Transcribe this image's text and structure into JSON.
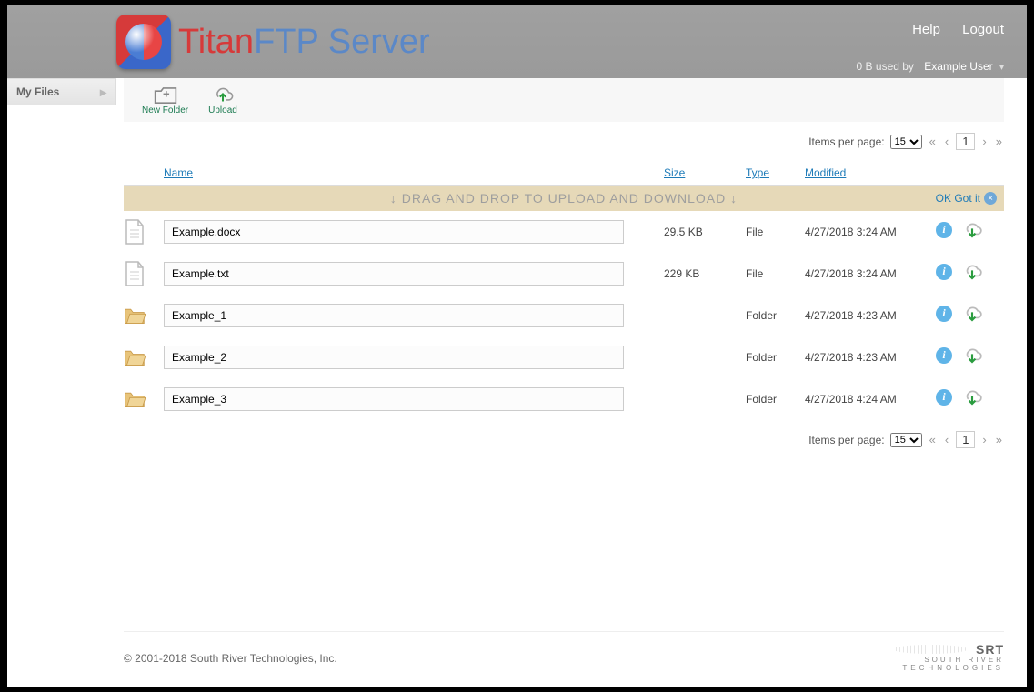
{
  "header": {
    "brand_a": "Titan",
    "brand_b": "FTP Server",
    "help": "Help",
    "logout": "Logout",
    "usage": "0 B used by",
    "user": "Example User"
  },
  "sidebar": {
    "my_files": "My Files"
  },
  "toolbar": {
    "new_folder": "New Folder",
    "upload": "Upload"
  },
  "pager": {
    "label": "Items per page:",
    "per_page": "15",
    "current": "1"
  },
  "columns": {
    "name": "Name",
    "size": "Size",
    "type": "Type",
    "modified": "Modified"
  },
  "banner": {
    "text": "↓ DRAG AND DROP TO UPLOAD AND DOWNLOAD ↓",
    "ok": "OK Got it"
  },
  "rows": [
    {
      "icon": "file",
      "name": "Example.docx",
      "size": "29.5 KB",
      "type": "File",
      "modified": "4/27/2018 3:24 AM"
    },
    {
      "icon": "file",
      "name": "Example.txt",
      "size": "229 KB",
      "type": "File",
      "modified": "4/27/2018 3:24 AM"
    },
    {
      "icon": "folder",
      "name": "Example_1",
      "size": "",
      "type": "Folder",
      "modified": "4/27/2018 4:23 AM"
    },
    {
      "icon": "folder",
      "name": "Example_2",
      "size": "",
      "type": "Folder",
      "modified": "4/27/2018 4:23 AM"
    },
    {
      "icon": "folder",
      "name": "Example_3",
      "size": "",
      "type": "Folder",
      "modified": "4/27/2018 4:24 AM"
    }
  ],
  "footer": {
    "copyright": "© 2001-2018 South River Technologies, Inc."
  },
  "colors": {
    "link": "#1e7bb8",
    "banner_bg": "#e6d9b8",
    "folder": "#d4a85a",
    "upload_green": "#2a9c3f"
  }
}
